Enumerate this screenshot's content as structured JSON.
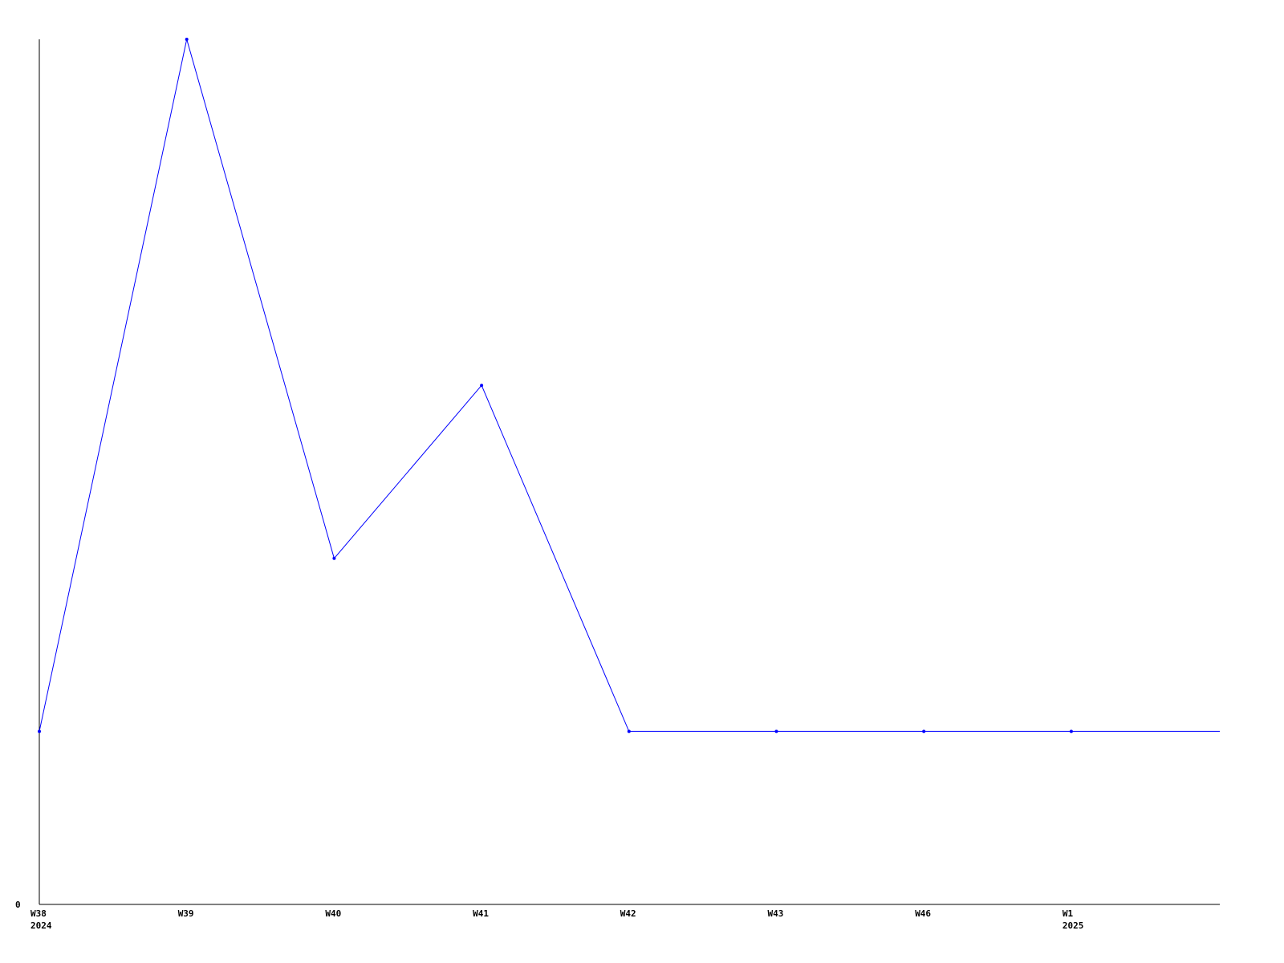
{
  "chart_data": {
    "type": "line",
    "title": "",
    "xlabel": "",
    "ylabel": "",
    "categories": [
      "W38",
      "W39",
      "W40",
      "W41",
      "W42",
      "W43",
      "W46",
      "W1"
    ],
    "year_labels": {
      "W38": "2024",
      "W1": "2025"
    },
    "y_tick_labels": [
      "0"
    ],
    "ylim": [
      0,
      5
    ],
    "grid": false,
    "series": [
      {
        "values": [
          1,
          5,
          2,
          3,
          1,
          1,
          1,
          1
        ],
        "color": "#0000ff"
      }
    ],
    "line_continues_right_at": 1,
    "axis_color": "#000000"
  }
}
